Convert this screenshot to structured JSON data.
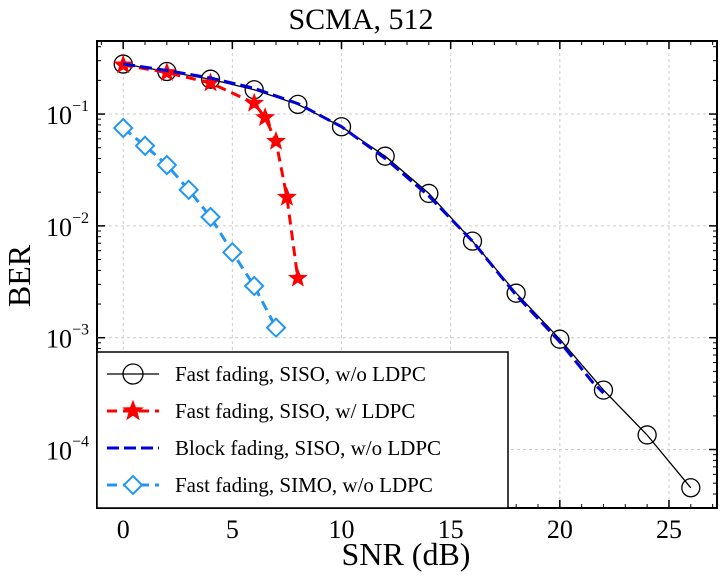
{
  "chart_data": {
    "type": "line",
    "title": "SCMA, 512",
    "xlabel": "SNR (dB)",
    "ylabel": "BER",
    "xlim": [
      -1.2,
      27.2
    ],
    "ylim": [
      3e-05,
      0.45
    ],
    "yscale": "log",
    "grid": true,
    "legend_position": "lower-left",
    "xticks": [
      0,
      5,
      10,
      15,
      20,
      25
    ],
    "xtick_labels": [
      "0",
      "5",
      "10",
      "15",
      "20",
      "25"
    ],
    "yticks": [
      0.1,
      0.01,
      0.001,
      0.0001
    ],
    "ytick_labels": [
      {
        "base": "10",
        "exp": "−1"
      },
      {
        "base": "10",
        "exp": "−2"
      },
      {
        "base": "10",
        "exp": "−3"
      },
      {
        "base": "10",
        "exp": "−4"
      }
    ],
    "series": [
      {
        "name": "Fast fading, SISO, w/o LDPC",
        "color": "#000000",
        "line_style": "solid",
        "marker": "circle",
        "x": [
          0,
          2,
          4,
          6,
          8,
          10,
          12,
          14,
          16,
          18,
          20,
          22,
          24,
          26
        ],
        "y": [
          0.28,
          0.24,
          0.205,
          0.165,
          0.122,
          0.077,
          0.042,
          0.0195,
          0.0073,
          0.0025,
          0.00097,
          0.00034,
          0.000135,
          4.55e-05
        ]
      },
      {
        "name": "Fast fading, SISO,  w/ LDPC",
        "color": "#ff0000",
        "line_style": "dashed",
        "marker": "star",
        "x": [
          0,
          2,
          4,
          6,
          6.5,
          7,
          7.5,
          8
        ],
        "y": [
          0.275,
          0.235,
          0.19,
          0.125,
          0.093,
          0.057,
          0.018,
          0.0034
        ]
      },
      {
        "name": "Block fading, SISO,  w/o LDPC",
        "color": "#0000dd",
        "line_style": "dashed",
        "marker": "none",
        "x": [
          0,
          2,
          4,
          6,
          8,
          10,
          12,
          14,
          16,
          18,
          20,
          21.5,
          22
        ],
        "y": [
          0.28,
          0.245,
          0.21,
          0.17,
          0.124,
          0.077,
          0.04,
          0.0185,
          0.0073,
          0.0024,
          0.00092,
          0.0004,
          0.00032
        ]
      },
      {
        "name": "Fast fading, SIMO, w/o LDPC",
        "color": "#2196f3",
        "line_style": "dashed",
        "marker": "diamond",
        "x": [
          0,
          1,
          2,
          3,
          4,
          5,
          6,
          7
        ],
        "y": [
          0.075,
          0.052,
          0.035,
          0.021,
          0.012,
          0.0058,
          0.0029,
          0.00123
        ]
      }
    ]
  }
}
